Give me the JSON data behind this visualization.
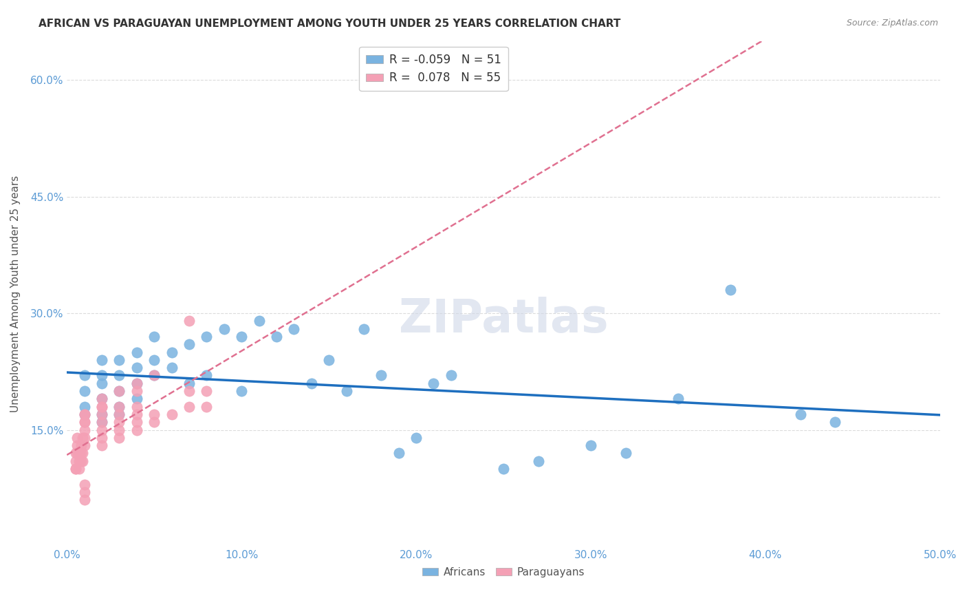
{
  "title": "AFRICAN VS PARAGUAYAN UNEMPLOYMENT AMONG YOUTH UNDER 25 YEARS CORRELATION CHART",
  "source": "Source: ZipAtlas.com",
  "xlabel": "",
  "ylabel": "Unemployment Among Youth under 25 years",
  "xlim": [
    0.0,
    0.5
  ],
  "ylim": [
    0.0,
    0.65
  ],
  "xticks": [
    0.0,
    0.1,
    0.2,
    0.3,
    0.4,
    0.5
  ],
  "yticks": [
    0.15,
    0.3,
    0.45,
    0.6
  ],
  "ytick_labels": [
    "15.0%",
    "30.0%",
    "45.0%",
    "60.0%"
  ],
  "xtick_labels": [
    "0.0%",
    "10.0%",
    "20.0%",
    "30.0%",
    "40.0%",
    "50.0%"
  ],
  "background_color": "#ffffff",
  "grid_color": "#cccccc",
  "watermark": "ZIPatlas",
  "african_color": "#7ab3e0",
  "paraguayan_color": "#f4a0b5",
  "african_line_color": "#1e6fbf",
  "paraguayan_line_color": "#e07090",
  "african_r": -0.059,
  "african_n": 51,
  "paraguayan_r": 0.078,
  "paraguayan_n": 55,
  "africans_x": [
    0.01,
    0.01,
    0.01,
    0.01,
    0.02,
    0.02,
    0.02,
    0.02,
    0.02,
    0.02,
    0.03,
    0.03,
    0.03,
    0.03,
    0.03,
    0.04,
    0.04,
    0.04,
    0.04,
    0.05,
    0.05,
    0.05,
    0.06,
    0.06,
    0.07,
    0.07,
    0.08,
    0.08,
    0.09,
    0.1,
    0.1,
    0.11,
    0.12,
    0.13,
    0.14,
    0.15,
    0.16,
    0.17,
    0.18,
    0.19,
    0.2,
    0.21,
    0.22,
    0.25,
    0.27,
    0.3,
    0.32,
    0.35,
    0.38,
    0.42,
    0.44
  ],
  "africans_y": [
    0.17,
    0.18,
    0.2,
    0.22,
    0.16,
    0.17,
    0.19,
    0.21,
    0.22,
    0.24,
    0.17,
    0.18,
    0.2,
    0.22,
    0.24,
    0.19,
    0.21,
    0.23,
    0.25,
    0.22,
    0.24,
    0.27,
    0.23,
    0.25,
    0.21,
    0.26,
    0.22,
    0.27,
    0.28,
    0.2,
    0.27,
    0.29,
    0.27,
    0.28,
    0.21,
    0.24,
    0.2,
    0.28,
    0.22,
    0.12,
    0.14,
    0.21,
    0.22,
    0.1,
    0.11,
    0.13,
    0.12,
    0.19,
    0.33,
    0.17,
    0.16
  ],
  "paraguayans_x": [
    0.005,
    0.005,
    0.005,
    0.005,
    0.006,
    0.006,
    0.006,
    0.007,
    0.007,
    0.007,
    0.008,
    0.008,
    0.008,
    0.009,
    0.009,
    0.009,
    0.01,
    0.01,
    0.01,
    0.01,
    0.01,
    0.01,
    0.01,
    0.02,
    0.02,
    0.02,
    0.02,
    0.02,
    0.02,
    0.02,
    0.02,
    0.03,
    0.03,
    0.03,
    0.03,
    0.03,
    0.03,
    0.04,
    0.04,
    0.04,
    0.04,
    0.04,
    0.04,
    0.05,
    0.05,
    0.05,
    0.06,
    0.07,
    0.07,
    0.07,
    0.08,
    0.08,
    0.01,
    0.01,
    0.01
  ],
  "paraguayans_y": [
    0.1,
    0.1,
    0.11,
    0.12,
    0.12,
    0.13,
    0.14,
    0.1,
    0.11,
    0.12,
    0.11,
    0.12,
    0.13,
    0.11,
    0.12,
    0.14,
    0.13,
    0.14,
    0.15,
    0.16,
    0.16,
    0.17,
    0.17,
    0.13,
    0.14,
    0.15,
    0.16,
    0.17,
    0.18,
    0.18,
    0.19,
    0.14,
    0.15,
    0.16,
    0.17,
    0.18,
    0.2,
    0.15,
    0.16,
    0.17,
    0.18,
    0.2,
    0.21,
    0.16,
    0.17,
    0.22,
    0.17,
    0.18,
    0.2,
    0.29,
    0.18,
    0.2,
    0.08,
    0.07,
    0.06
  ]
}
